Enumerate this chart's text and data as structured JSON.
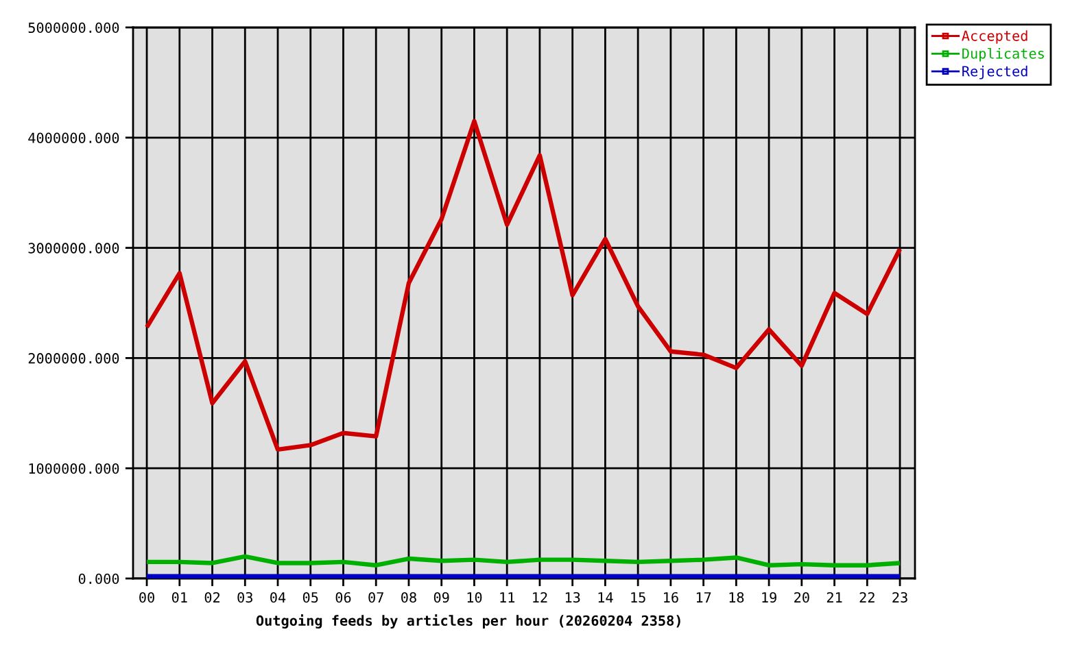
{
  "chart_data": {
    "type": "line",
    "xlabel": "Outgoing feeds by articles per hour (20260204 2358)",
    "categories": [
      "00",
      "01",
      "02",
      "03",
      "04",
      "05",
      "06",
      "07",
      "08",
      "09",
      "10",
      "11",
      "12",
      "13",
      "14",
      "15",
      "16",
      "17",
      "18",
      "19",
      "20",
      "21",
      "22",
      "23"
    ],
    "series": [
      {
        "name": "Accepted",
        "color": "#cc0000",
        "values": [
          2280000,
          2770000,
          1590000,
          1970000,
          1170000,
          1210000,
          1320000,
          1290000,
          2680000,
          3260000,
          4150000,
          3210000,
          3840000,
          2570000,
          3080000,
          2470000,
          2060000,
          2030000,
          1910000,
          2260000,
          1930000,
          2590000,
          2400000,
          2990000
        ]
      },
      {
        "name": "Duplicates",
        "color": "#00b000",
        "values": [
          150000,
          150000,
          140000,
          200000,
          140000,
          140000,
          150000,
          120000,
          180000,
          160000,
          170000,
          150000,
          170000,
          170000,
          160000,
          150000,
          160000,
          170000,
          190000,
          120000,
          130000,
          120000,
          120000,
          140000
        ]
      },
      {
        "name": "Rejected",
        "color": "#0000c0",
        "values": [
          20000,
          20000,
          20000,
          20000,
          20000,
          20000,
          20000,
          20000,
          20000,
          20000,
          20000,
          20000,
          20000,
          20000,
          20000,
          20000,
          20000,
          20000,
          20000,
          20000,
          20000,
          20000,
          20000,
          20000
        ]
      }
    ],
    "ylim": [
      0,
      5000000
    ],
    "yticks": [
      {
        "value": 0,
        "label": "0.000"
      },
      {
        "value": 1000000,
        "label": "1000000.000"
      },
      {
        "value": 2000000,
        "label": "2000000.000"
      },
      {
        "value": 3000000,
        "label": "3000000.000"
      },
      {
        "value": 4000000,
        "label": "4000000.000"
      },
      {
        "value": 5000000,
        "label": "5000000.000"
      }
    ],
    "grid": true,
    "legend": "top right",
    "line_style": "solid"
  }
}
